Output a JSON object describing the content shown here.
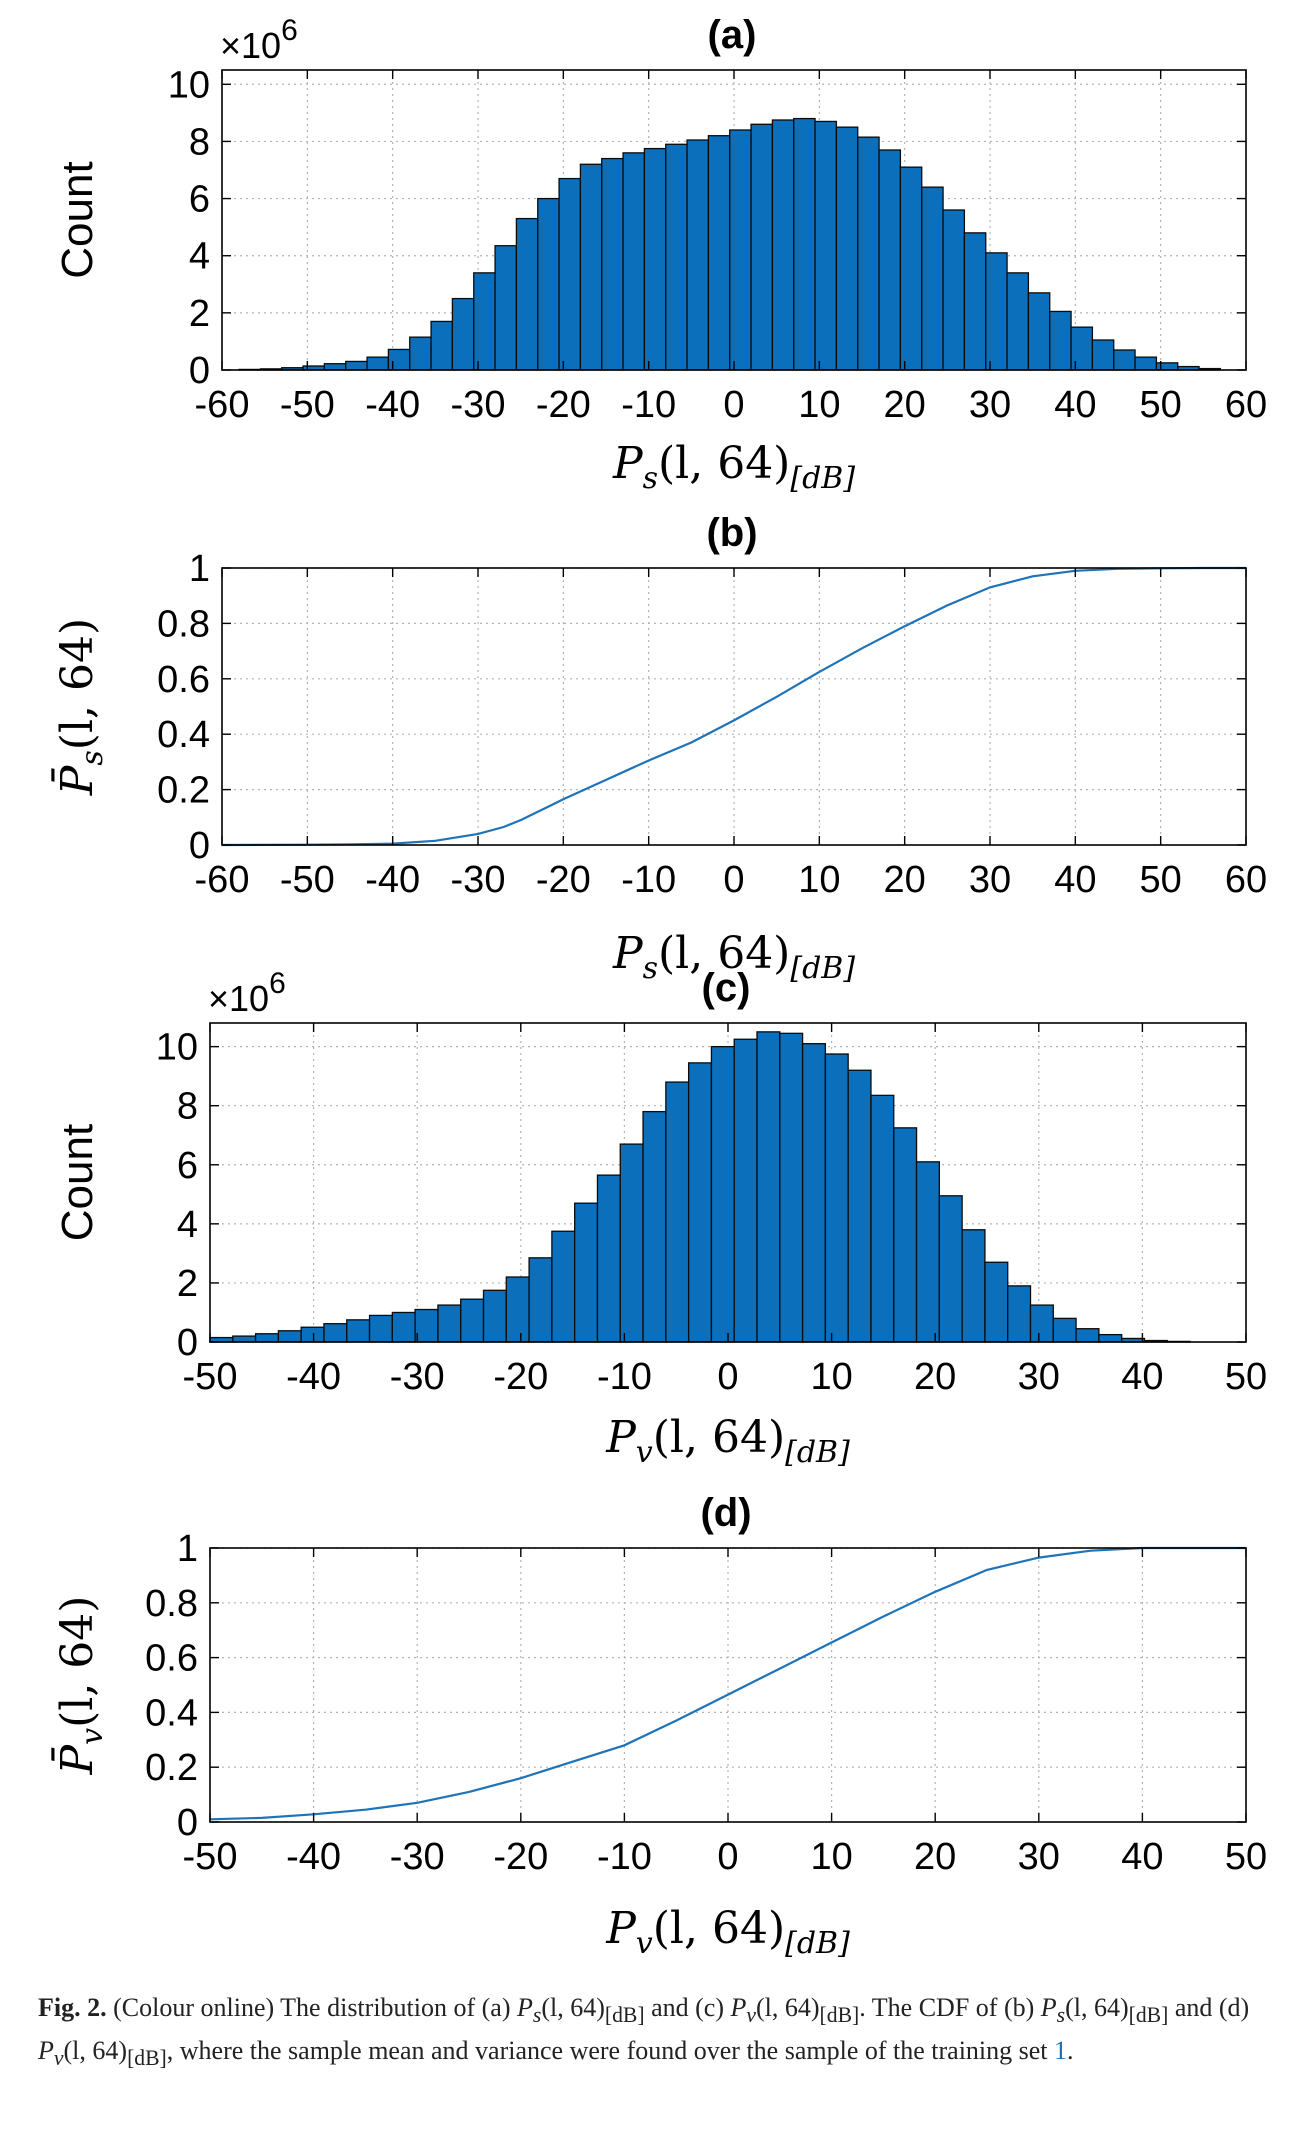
{
  "colors": {
    "bar": "#0b6fbb",
    "bar_edge": "#0b0b0b",
    "line": "#1f73b9",
    "grid": "#b4b4b4"
  },
  "chart_data": [
    {
      "id": "a",
      "type": "bar",
      "title": "(a)",
      "xlabel": "P_s(l, 64)_[dB]",
      "ylabel": "Count",
      "scale_label": "×10",
      "scale_exp": "6",
      "xlim": [
        -60,
        60
      ],
      "ylim": [
        0,
        10.5
      ],
      "xticks": [
        -60,
        -50,
        -40,
        -30,
        -20,
        -10,
        0,
        10,
        20,
        30,
        40,
        50,
        60
      ],
      "xtick_labels": [
        "-60",
        "-50",
        "-40",
        "-30",
        "-20",
        "-10",
        "0",
        "10",
        "20",
        "30",
        "40",
        "50",
        "60"
      ],
      "yticks": [
        0,
        2,
        4,
        6,
        8,
        10
      ],
      "ytick_labels": [
        "0",
        "2",
        "4",
        "6",
        "8",
        "10"
      ],
      "bin_edges": [
        -58,
        -55.5,
        -53,
        -50.5,
        -48,
        -45.5,
        -43,
        -40.5,
        -38,
        -35.5,
        -33,
        -30.5,
        -28,
        -25.5,
        -23,
        -20.5,
        -18,
        -15.5,
        -13,
        -10.5,
        -8,
        -5.5,
        -3,
        -0.5,
        2,
        4.5,
        7,
        9.5,
        12,
        14.5,
        17,
        19.5,
        22,
        24.5,
        27,
        29.5,
        32,
        34.5,
        37,
        39.5,
        42,
        44.5,
        47,
        49.5,
        52,
        54.5,
        57
      ],
      "values": [
        0.02,
        0.04,
        0.08,
        0.14,
        0.22,
        0.3,
        0.45,
        0.72,
        1.15,
        1.7,
        2.5,
        3.4,
        4.35,
        5.3,
        6.0,
        6.7,
        7.2,
        7.4,
        7.6,
        7.75,
        7.9,
        8.05,
        8.2,
        8.4,
        8.6,
        8.75,
        8.8,
        8.7,
        8.5,
        8.15,
        7.7,
        7.1,
        6.4,
        5.6,
        4.8,
        4.1,
        3.4,
        2.7,
        2.05,
        1.5,
        1.05,
        0.7,
        0.45,
        0.25,
        0.12,
        0.05
      ],
      "grid": true
    },
    {
      "id": "b",
      "type": "line",
      "title": "(b)",
      "xlabel": "P_s(l, 64)_[dB]",
      "ylabel": "P̄_s(l, 64)",
      "xlim": [
        -60,
        60
      ],
      "ylim": [
        0,
        1
      ],
      "xticks": [
        -60,
        -50,
        -40,
        -30,
        -20,
        -10,
        0,
        10,
        20,
        30,
        40,
        50,
        60
      ],
      "xtick_labels": [
        "-60",
        "-50",
        "-40",
        "-30",
        "-20",
        "-10",
        "0",
        "10",
        "20",
        "30",
        "40",
        "50",
        "60"
      ],
      "yticks": [
        0,
        0.2,
        0.4,
        0.6,
        0.8,
        1
      ],
      "ytick_labels": [
        "0",
        "0.2",
        "0.4",
        "0.6",
        "0.8",
        "1"
      ],
      "x": [
        -60,
        -50,
        -45,
        -40,
        -35,
        -30,
        -27,
        -25,
        -22,
        -20,
        -15,
        -10,
        -5,
        0,
        5,
        10,
        15,
        20,
        25,
        30,
        35,
        40,
        45,
        50,
        55,
        60
      ],
      "y": [
        0.0,
        0.001,
        0.002,
        0.005,
        0.015,
        0.04,
        0.065,
        0.09,
        0.135,
        0.165,
        0.235,
        0.305,
        0.37,
        0.45,
        0.535,
        0.625,
        0.71,
        0.79,
        0.865,
        0.93,
        0.97,
        0.99,
        0.997,
        0.999,
        1.0,
        1.0
      ],
      "grid": true
    },
    {
      "id": "c",
      "type": "bar",
      "title": "(c)",
      "xlabel": "P_v(l, 64)_[dB]",
      "ylabel": "Count",
      "scale_label": "×10",
      "scale_exp": "6",
      "xlim": [
        -50,
        50
      ],
      "ylim": [
        0,
        10.8
      ],
      "xticks": [
        -50,
        -40,
        -30,
        -20,
        -10,
        0,
        10,
        20,
        30,
        40,
        50
      ],
      "xtick_labels": [
        "-50",
        "-40",
        "-30",
        "-20",
        "-10",
        "0",
        "10",
        "20",
        "30",
        "40",
        "50"
      ],
      "yticks": [
        0,
        2,
        4,
        6,
        8,
        10
      ],
      "ytick_labels": [
        "0",
        "2",
        "4",
        "6",
        "8",
        "10"
      ],
      "bin_edges": [
        -50,
        -47.8,
        -45.6,
        -43.4,
        -41.2,
        -39,
        -36.8,
        -34.6,
        -32.4,
        -30.2,
        -28,
        -25.8,
        -23.6,
        -21.4,
        -19.2,
        -17,
        -14.8,
        -12.6,
        -10.4,
        -8.2,
        -6,
        -3.8,
        -1.6,
        0.6,
        2.8,
        5,
        7.2,
        9.4,
        11.6,
        13.8,
        16,
        18.2,
        20.4,
        22.6,
        24.8,
        27,
        29.2,
        31.4,
        33.6,
        35.8,
        38,
        40.2,
        42.4,
        44.6
      ],
      "values": [
        0.15,
        0.2,
        0.28,
        0.38,
        0.5,
        0.62,
        0.75,
        0.9,
        1.0,
        1.1,
        1.25,
        1.45,
        1.75,
        2.2,
        2.85,
        3.75,
        4.7,
        5.65,
        6.7,
        7.8,
        8.8,
        9.45,
        10.0,
        10.25,
        10.5,
        10.45,
        10.1,
        9.75,
        9.2,
        8.35,
        7.25,
        6.1,
        4.95,
        3.8,
        2.7,
        1.9,
        1.25,
        0.8,
        0.45,
        0.25,
        0.12,
        0.05,
        0.02
      ],
      "grid": true
    },
    {
      "id": "d",
      "type": "line",
      "title": "(d)",
      "xlabel": "P_v(l, 64)_[dB]",
      "ylabel": "P̄_v(l, 64)",
      "xlim": [
        -50,
        50
      ],
      "ylim": [
        0,
        1
      ],
      "xticks": [
        -50,
        -40,
        -30,
        -20,
        -10,
        0,
        10,
        20,
        30,
        40,
        50
      ],
      "xtick_labels": [
        "-50",
        "-40",
        "-30",
        "-20",
        "-10",
        "0",
        "10",
        "20",
        "30",
        "40",
        "50"
      ],
      "yticks": [
        0,
        0.2,
        0.4,
        0.6,
        0.8,
        1
      ],
      "ytick_labels": [
        "0",
        "0.2",
        "0.4",
        "0.6",
        "0.8",
        "1"
      ],
      "x": [
        -50,
        -45,
        -40,
        -35,
        -30,
        -25,
        -20,
        -15,
        -10,
        -5,
        0,
        5,
        10,
        15,
        20,
        25,
        30,
        35,
        40,
        45,
        50
      ],
      "y": [
        0.01,
        0.015,
        0.028,
        0.045,
        0.07,
        0.11,
        0.16,
        0.22,
        0.28,
        0.37,
        0.465,
        0.56,
        0.655,
        0.75,
        0.84,
        0.92,
        0.965,
        0.99,
        1.0,
        1.0,
        1.0
      ],
      "grid": true
    }
  ],
  "caption": {
    "label": "Fig. 2.",
    "text_1": "(Colour online) The distribution of (a)",
    "ps": "P",
    "ps_sub": "s",
    "arg": "(l, 64)",
    "db_sub": "[dB]",
    "text_and": "and (c)",
    "pv": "P",
    "pv_sub": "v",
    "text_cdf": ". The CDF of (b)",
    "text_and_d": "and (d)",
    "text_2": ", where the sample mean and variance were found over the sample of the training set",
    "ref": "1",
    "end": "."
  }
}
